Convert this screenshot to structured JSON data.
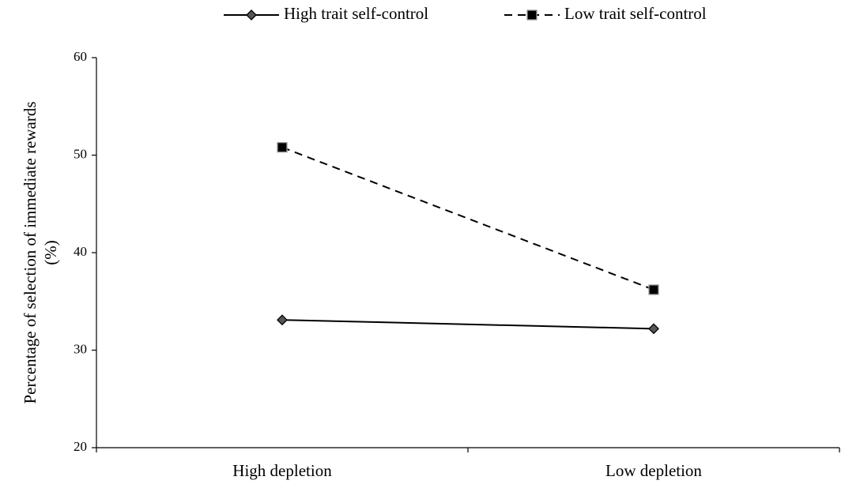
{
  "chart_data": {
    "type": "line",
    "ylabel": [
      "Percentage of selection of immediate rewards",
      "(%)"
    ],
    "categories": [
      "High depletion",
      "Low depletion"
    ],
    "series": [
      {
        "name": "High trait self-control",
        "color": "#000000",
        "dash": false,
        "marker": "diamond",
        "values": [
          33.1,
          32.2
        ]
      },
      {
        "name": "Low trait self-control",
        "color": "#000000",
        "dash": true,
        "marker": "square",
        "values": [
          50.8,
          36.2
        ]
      }
    ],
    "ylim": [
      20,
      60
    ],
    "yticks": [
      20,
      30,
      40,
      50,
      60
    ],
    "grid": false,
    "legend": "top"
  }
}
